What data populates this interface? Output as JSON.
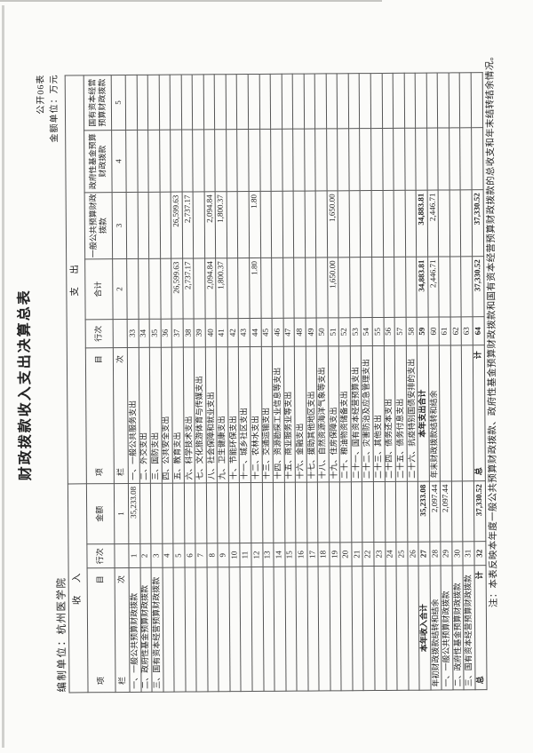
{
  "page": {
    "form_number": "公开06表",
    "amount_unit": "金额单位：万元",
    "title": "财政拨款收入支出决算总表",
    "org_label": "编制单位：杭州医学院",
    "footnote": "注：本表反映本年度一般公共预算财政拨款、政府性基金预算财政拨款和国有资本经营预算财政拨款的总收支和年末结转结余情况。"
  },
  "table": {
    "section_income": "收　入",
    "section_expenditure": "支　出",
    "columns": {
      "income_item": "项　目",
      "income_line": "行次",
      "income_amount": "金额",
      "exp_item": "项　目",
      "exp_line": "行次",
      "exp_total": "合计",
      "exp_general_budget": "一般公共预算财政拨款",
      "exp_gov_fund": "政府性基金预算财政拨款",
      "exp_state_capital": "国有资本经营预算财政拨款"
    },
    "lane": {
      "income_label": "栏　次",
      "income_amount_no": "1",
      "exp_label": "栏　次",
      "exp_total_no": "2",
      "exp_general_no": "3",
      "exp_gov_fund_no": "4",
      "exp_state_capital_no": "5"
    },
    "income_rows": [
      {
        "item": "一、一般公共预算财政拨款",
        "line": "1",
        "amount": "35,233.08"
      },
      {
        "item": "二、政府性基金预算财政拨款",
        "line": "2",
        "amount": ""
      },
      {
        "item": "三、国有资本经营预算财政拨款",
        "line": "3",
        "amount": ""
      },
      {
        "item": "",
        "line": "4",
        "amount": ""
      },
      {
        "item": "",
        "line": "5",
        "amount": ""
      },
      {
        "item": "",
        "line": "6",
        "amount": ""
      },
      {
        "item": "",
        "line": "7",
        "amount": ""
      },
      {
        "item": "",
        "line": "8",
        "amount": ""
      },
      {
        "item": "",
        "line": "9",
        "amount": ""
      },
      {
        "item": "",
        "line": "10",
        "amount": ""
      },
      {
        "item": "",
        "line": "11",
        "amount": ""
      },
      {
        "item": "",
        "line": "12",
        "amount": ""
      },
      {
        "item": "",
        "line": "13",
        "amount": ""
      },
      {
        "item": "",
        "line": "14",
        "amount": ""
      },
      {
        "item": "",
        "line": "15",
        "amount": ""
      },
      {
        "item": "",
        "line": "16",
        "amount": ""
      },
      {
        "item": "",
        "line": "17",
        "amount": ""
      },
      {
        "item": "",
        "line": "18",
        "amount": ""
      },
      {
        "item": "",
        "line": "19",
        "amount": ""
      },
      {
        "item": "",
        "line": "20",
        "amount": ""
      },
      {
        "item": "",
        "line": "21",
        "amount": ""
      },
      {
        "item": "",
        "line": "22",
        "amount": ""
      },
      {
        "item": "",
        "line": "23",
        "amount": ""
      },
      {
        "item": "",
        "line": "24",
        "amount": ""
      },
      {
        "item": "",
        "line": "25",
        "amount": ""
      },
      {
        "item": "",
        "line": "26",
        "amount": ""
      },
      {
        "item": "本年收入合计",
        "line": "27",
        "amount": "35,233.08",
        "emph": true,
        "center": true
      },
      {
        "item": "年初财政拨款结转和结余",
        "line": "28",
        "amount": "2,097.44"
      },
      {
        "item": "一、一般公共预算财政拨款",
        "line": "29",
        "amount": "2,097.44"
      },
      {
        "item": "二、政府性基金预算财政拨款",
        "line": "30",
        "amount": ""
      },
      {
        "item": "三、国有资本经营预算财政拨款",
        "line": "31",
        "amount": ""
      },
      {
        "item": "总　计",
        "line": "32",
        "amount": "37,330.52",
        "emph": true,
        "spread": true
      }
    ],
    "expenditure_rows": [
      {
        "item": "一、一般公共服务支出",
        "line": "33",
        "total": "",
        "general": "",
        "gov_fund": "",
        "state_capital": ""
      },
      {
        "item": "二、外交支出",
        "line": "34",
        "total": "",
        "general": "",
        "gov_fund": "",
        "state_capital": ""
      },
      {
        "item": "三、国防支出",
        "line": "35",
        "total": "",
        "general": "",
        "gov_fund": "",
        "state_capital": ""
      },
      {
        "item": "四、公共安全支出",
        "line": "36",
        "total": "",
        "general": "",
        "gov_fund": "",
        "state_capital": ""
      },
      {
        "item": "五、教育支出",
        "line": "37",
        "total": "26,599.63",
        "general": "26,599.63",
        "gov_fund": "",
        "state_capital": ""
      },
      {
        "item": "六、科学技术支出",
        "line": "38",
        "total": "2,737.17",
        "general": "2,737.17",
        "gov_fund": "",
        "state_capital": ""
      },
      {
        "item": "七、文化旅游体育与传媒支出",
        "line": "39",
        "total": "",
        "general": "",
        "gov_fund": "",
        "state_capital": ""
      },
      {
        "item": "八、社会保障和就业支出",
        "line": "40",
        "total": "2,094.84",
        "general": "2,094.84",
        "gov_fund": "",
        "state_capital": ""
      },
      {
        "item": "九、卫生健康支出",
        "line": "41",
        "total": "1,800.37",
        "general": "1,800.37",
        "gov_fund": "",
        "state_capital": ""
      },
      {
        "item": "十、节能环保支出",
        "line": "42",
        "total": "",
        "general": "",
        "gov_fund": "",
        "state_capital": ""
      },
      {
        "item": "十一、城乡社区支出",
        "line": "43",
        "total": "",
        "general": "",
        "gov_fund": "",
        "state_capital": ""
      },
      {
        "item": "十二、农林水支出",
        "line": "44",
        "total": "1.80",
        "general": "1.80",
        "gov_fund": "",
        "state_capital": ""
      },
      {
        "item": "十三、交通运输支出",
        "line": "45",
        "total": "",
        "general": "",
        "gov_fund": "",
        "state_capital": ""
      },
      {
        "item": "十四、资源勘探工业信息等支出",
        "line": "46",
        "total": "",
        "general": "",
        "gov_fund": "",
        "state_capital": ""
      },
      {
        "item": "十五、商业服务业等支出",
        "line": "47",
        "total": "",
        "general": "",
        "gov_fund": "",
        "state_capital": ""
      },
      {
        "item": "十六、金融支出",
        "line": "48",
        "total": "",
        "general": "",
        "gov_fund": "",
        "state_capital": ""
      },
      {
        "item": "十七、援助其他地区支出",
        "line": "49",
        "total": "",
        "general": "",
        "gov_fund": "",
        "state_capital": ""
      },
      {
        "item": "十八、自然资源海洋气象等支出",
        "line": "50",
        "total": "",
        "general": "",
        "gov_fund": "",
        "state_capital": ""
      },
      {
        "item": "十九、住房保障支出",
        "line": "51",
        "total": "1,650.00",
        "general": "1,650.00",
        "gov_fund": "",
        "state_capital": ""
      },
      {
        "item": "二十、粮油物资储备支出",
        "line": "52",
        "total": "",
        "general": "",
        "gov_fund": "",
        "state_capital": ""
      },
      {
        "item": "二十一、国有资本经营预算支出",
        "line": "53",
        "total": "",
        "general": "",
        "gov_fund": "",
        "state_capital": ""
      },
      {
        "item": "二十二、灾害防治及应急管理支出",
        "line": "54",
        "total": "",
        "general": "",
        "gov_fund": "",
        "state_capital": ""
      },
      {
        "item": "二十三、其他支出",
        "line": "55",
        "total": "",
        "general": "",
        "gov_fund": "",
        "state_capital": ""
      },
      {
        "item": "二十四、债务还本支出",
        "line": "56",
        "total": "",
        "general": "",
        "gov_fund": "",
        "state_capital": ""
      },
      {
        "item": "二十五、债务付息支出",
        "line": "57",
        "total": "",
        "general": "",
        "gov_fund": "",
        "state_capital": ""
      },
      {
        "item": "二十六、抗疫特别国债安排的支出",
        "line": "58",
        "total": "",
        "general": "",
        "gov_fund": "",
        "state_capital": ""
      },
      {
        "item": "本年支出合计",
        "line": "59",
        "total": "34,883.81",
        "general": "34,883.81",
        "gov_fund": "",
        "state_capital": "",
        "emph": true,
        "center": true
      },
      {
        "item": "年末财政拨款结转和结余",
        "line": "60",
        "total": "2,446.71",
        "general": "2,446.71",
        "gov_fund": "",
        "state_capital": ""
      },
      {
        "item": "",
        "line": "61",
        "total": "",
        "general": "",
        "gov_fund": "",
        "state_capital": ""
      },
      {
        "item": "",
        "line": "62",
        "total": "",
        "general": "",
        "gov_fund": "",
        "state_capital": ""
      },
      {
        "item": "",
        "line": "63",
        "total": "",
        "general": "",
        "gov_fund": "",
        "state_capital": ""
      },
      {
        "item": "总　计",
        "line": "64",
        "total": "37,330.52",
        "general": "37,330.52",
        "gov_fund": "",
        "state_capital": "",
        "emph": true,
        "spread": true
      }
    ]
  }
}
